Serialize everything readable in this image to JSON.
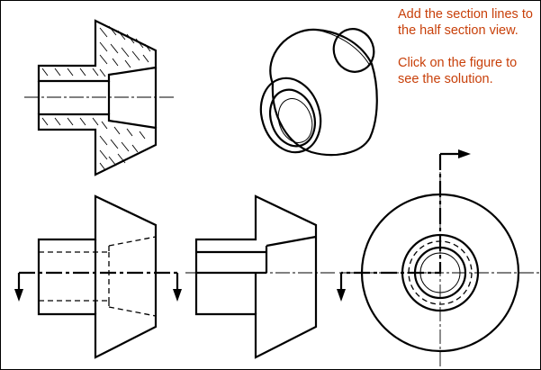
{
  "instructions": {
    "line1": "Add the section lines to the half section view.",
    "line2": "Click on the figure to see the solution."
  },
  "colors": {
    "instruction_text": "#c8400a",
    "lines": "#000000",
    "background": "#ffffff"
  }
}
